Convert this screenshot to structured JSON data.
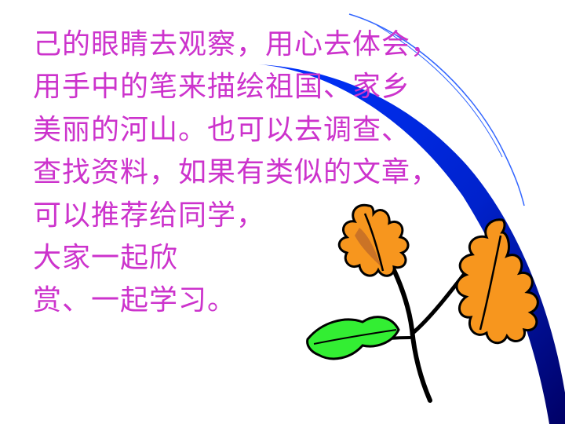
{
  "slide": {
    "lines": [
      "己的眼睛去观察，用心去体会，",
      "用手中的笔来描绘祖国、家乡",
      "美丽的河山。也可以去调查、",
      "查找资料，如果有类似的文章，",
      "可以推荐给同学，",
      "大家一起欣",
      "赏、一起学习。"
    ]
  },
  "colors": {
    "text": "#cc33cc",
    "swoosh_blue": "#0033ff",
    "swoosh_dark": "#000066",
    "swoosh_line": "#3366ff",
    "leaf_orange": "#f7961e",
    "leaf_brown": "#b8642a",
    "leaf_green": "#33ee33",
    "stem": "#000000"
  },
  "icons": {
    "swoosh": "blue-swoosh-decoration",
    "leaves": "autumn-leaves-clipart"
  }
}
